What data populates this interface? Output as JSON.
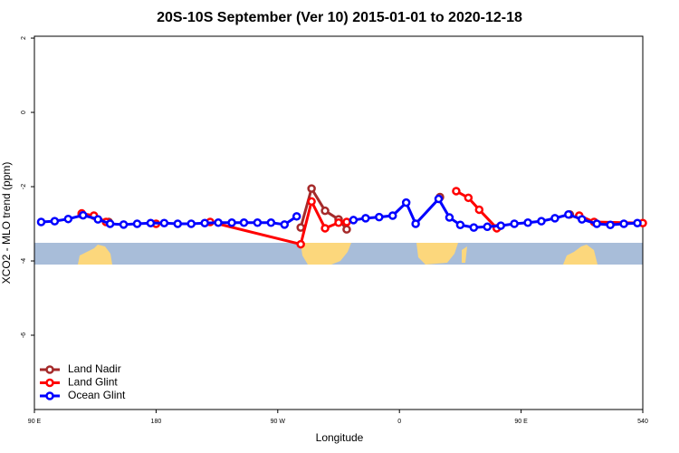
{
  "chart_data": {
    "type": "line",
    "title": "20S-10S September (Ver 10)   2015-01-01 to 2020-12-18",
    "xlabel": "Longitude",
    "ylabel": "XCO2 - MLO trend (ppm)",
    "xlim": [
      90,
      540
    ],
    "ylim": [
      -8,
      2.05
    ],
    "xticks": [
      {
        "value": 90,
        "label": "90 E"
      },
      180,
      {
        "value": 270,
        "label": "90 W"
      },
      {
        "value": 360,
        "label": "0"
      },
      {
        "value": 450,
        "label": "90 E"
      },
      540
    ],
    "yticks": [
      2,
      0,
      -2,
      -4,
      -6
    ],
    "legend": "bottom-left",
    "series": [
      {
        "name": "Land Nadir",
        "color": "#a52a2a",
        "x": [
          125,
          145,
          305,
          287,
          295,
          305,
          315,
          321,
          380,
          390,
          480,
          486
        ],
        "values": [
          -2.75,
          -2.95,
          null,
          -3.1,
          -2.05,
          -2.65,
          -2.88,
          -3.15,
          null,
          -2.28,
          null,
          -2.75
        ]
      },
      {
        "name": "Land Glint",
        "color": "#ff0000",
        "x": [
          125,
          134,
          143,
          160,
          180,
          210,
          220,
          287,
          295,
          305,
          315,
          321,
          360,
          402,
          411,
          419,
          432,
          470,
          493,
          504,
          540
        ],
        "values": [
          -2.72,
          -2.78,
          -2.95,
          null,
          -3.0,
          null,
          -2.95,
          -3.55,
          -2.4,
          -3.12,
          -2.97,
          -2.95,
          null,
          -2.12,
          -2.3,
          -2.62,
          -3.12,
          null,
          -2.78,
          -2.95,
          -2.98
        ]
      },
      {
        "name": "Ocean Glint",
        "color": "#0000ff",
        "x": [
          95,
          105,
          115,
          126,
          137,
          146,
          156,
          166,
          176,
          186,
          196,
          206,
          216,
          226,
          236,
          245,
          255,
          265,
          275,
          284,
          305,
          326,
          335,
          345,
          355,
          365,
          372,
          389,
          397,
          405,
          415,
          425,
          435,
          445,
          455,
          465,
          475,
          485,
          495,
          506,
          516,
          526,
          536
        ],
        "values": [
          -2.95,
          -2.93,
          -2.87,
          -2.77,
          -2.88,
          -3.0,
          -3.02,
          -3.0,
          -2.98,
          -2.98,
          -3.0,
          -3.0,
          -2.98,
          -2.97,
          -2.97,
          -2.97,
          -2.97,
          -2.97,
          -3.02,
          -2.8,
          null,
          -2.9,
          -2.85,
          -2.82,
          -2.78,
          -2.43,
          -3.0,
          -2.33,
          -2.83,
          -3.03,
          -3.1,
          -3.08,
          -3.05,
          -3.0,
          -2.97,
          -2.93,
          -2.85,
          -2.75,
          -2.88,
          -3.0,
          -3.03,
          -3.0,
          -2.98
        ]
      }
    ]
  }
}
